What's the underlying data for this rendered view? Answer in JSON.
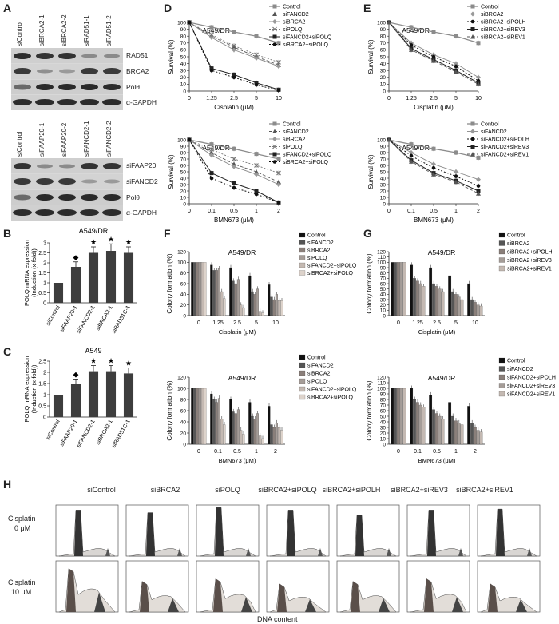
{
  "panels": {
    "A": {
      "letter": "A",
      "blot1": {
        "lanes": [
          "siControl",
          "siBRCA2-1",
          "siBRCA2-2",
          "siRAD51-1",
          "siRAD51-2"
        ],
        "bands": [
          "RAD51",
          "BRCA2",
          "Polθ",
          "α-GAPDH"
        ]
      },
      "blot2": {
        "lanes": [
          "siControl",
          "siFAAP20-1",
          "siFAAP20-2",
          "siFANCD2-1",
          "siFANCD2-2"
        ],
        "bands": [
          "siFAAP20",
          "siFANCD2",
          "Polθ",
          "α-GAPDH"
        ]
      }
    },
    "B": {
      "letter": "B",
      "title": "A549/DR",
      "ylabel": "POLQ mRNA expression (Induction (x-fold))"
    },
    "C": {
      "letter": "C",
      "title": "A549",
      "ylabel": "POLQ mRNA expression (Induction (x-fold))"
    },
    "D": {
      "letter": "D"
    },
    "E": {
      "letter": "E"
    },
    "F": {
      "letter": "F"
    },
    "G": {
      "letter": "G"
    },
    "H": {
      "letter": "H",
      "columns": [
        "siControl",
        "siBRCA2",
        "siPOLQ",
        "siBRCA2+siPOLQ",
        "siBRCA2+siPOLH",
        "siBRCA2+siREV3",
        "siBRCA2+siREV1"
      ],
      "rows": [
        [
          "Cisplatin",
          "0 μM"
        ],
        [
          "Cisplatin",
          "10 μM"
        ]
      ],
      "xlabel": "DNA content"
    }
  },
  "chart_data": [
    {
      "id": "B",
      "type": "bar",
      "title": "A549/DR",
      "ylabel": "POLQ mRNA expression (Induction (x-fold))",
      "categories": [
        "siControl",
        "siFAAP20-1",
        "siFANCD2-1",
        "siBRCA2-1",
        "siRAD51C-1"
      ],
      "values": [
        1.0,
        1.8,
        2.5,
        2.6,
        2.5
      ],
      "errors": [
        0.0,
        0.25,
        0.3,
        0.35,
        0.3
      ],
      "markers": [
        "",
        "◆",
        "★",
        "★",
        "★"
      ],
      "ylim": [
        0,
        3
      ],
      "yticks": [
        0,
        0.5,
        1,
        1.5,
        2,
        2.5,
        3
      ]
    },
    {
      "id": "C",
      "type": "bar",
      "title": "A549",
      "ylabel": "POLQ mRNA expression (Induction (x-fold))",
      "categories": [
        "siControl",
        "siFAAP20-1",
        "siFANCD2-1",
        "siBRCA2-1",
        "siRAD51C-1"
      ],
      "values": [
        1.0,
        1.5,
        2.05,
        2.05,
        1.95
      ],
      "errors": [
        0.0,
        0.2,
        0.25,
        0.25,
        0.25
      ],
      "markers": [
        "",
        "◆",
        "★",
        "★",
        "★"
      ],
      "ylim": [
        0,
        2.5
      ],
      "yticks": [
        0,
        0.5,
        1,
        1.5,
        2,
        2.5
      ]
    },
    {
      "id": "D1",
      "type": "line",
      "title": "A549/DR",
      "xlabel": "Cisplatin (μM)",
      "ylabel": "Survival (%)",
      "x": [
        "0",
        "1.25",
        "2.5",
        "5",
        "10"
      ],
      "ylim": [
        0,
        100
      ],
      "yticks": [
        0,
        10,
        20,
        30,
        40,
        50,
        60,
        70,
        80,
        90,
        100
      ],
      "series": [
        {
          "name": "Control",
          "values": [
            100,
            93,
            86,
            80,
            70
          ],
          "style": "ctrl"
        },
        {
          "name": "siFANCD2",
          "values": [
            100,
            80,
            64,
            50,
            38
          ],
          "style": "tri"
        },
        {
          "name": "siBRCA2",
          "values": [
            100,
            78,
            60,
            48,
            36
          ],
          "style": "diam"
        },
        {
          "name": "siPOLQ",
          "values": [
            100,
            82,
            66,
            53,
            42
          ],
          "style": "x"
        },
        {
          "name": "siFANCD2+siPOLQ",
          "values": [
            100,
            33,
            24,
            12,
            2
          ],
          "style": "sq"
        },
        {
          "name": "siBRCA2+siPOLQ",
          "values": [
            100,
            30,
            20,
            9,
            1
          ],
          "style": "dot"
        }
      ]
    },
    {
      "id": "D2",
      "type": "line",
      "title": "A549/DR",
      "xlabel": "BMN673 (μM)",
      "ylabel": "Survival (%)",
      "x": [
        "0",
        "0.1",
        "0.5",
        "1",
        "2"
      ],
      "ylim": [
        0,
        100
      ],
      "yticks": [
        0,
        10,
        20,
        30,
        40,
        50,
        60,
        70,
        80,
        90,
        100
      ],
      "series": [
        {
          "name": "Control",
          "values": [
            100,
            93,
            86,
            78,
            70
          ],
          "style": "ctrl"
        },
        {
          "name": "siFANCD2",
          "values": [
            100,
            80,
            62,
            50,
            34
          ],
          "style": "tri"
        },
        {
          "name": "siBRCA2",
          "values": [
            100,
            76,
            58,
            46,
            30
          ],
          "style": "diam"
        },
        {
          "name": "siPOLQ",
          "values": [
            100,
            85,
            70,
            60,
            48
          ],
          "style": "x"
        },
        {
          "name": "siFANCD2+siPOLQ",
          "values": [
            100,
            48,
            32,
            20,
            2
          ],
          "style": "sq"
        },
        {
          "name": "siBRCA2+siPOLQ",
          "values": [
            100,
            40,
            25,
            15,
            2
          ],
          "style": "dot"
        }
      ]
    },
    {
      "id": "E1",
      "type": "line",
      "title": "A549/DR",
      "xlabel": "Cisplatin (μM)",
      "ylabel": "Survival (%)",
      "x": [
        "0",
        "1.25",
        "2.5",
        "5",
        "10"
      ],
      "ylim": [
        0,
        100
      ],
      "yticks": [
        0,
        10,
        20,
        30,
        40,
        50,
        60,
        70,
        80,
        90,
        100
      ],
      "series": [
        {
          "name": "Control",
          "values": [
            100,
            93,
            86,
            80,
            70
          ],
          "style": "ctrl"
        },
        {
          "name": "siBRCA2",
          "values": [
            100,
            70,
            53,
            40,
            20
          ],
          "style": "diam"
        },
        {
          "name": "siBRCA2+siPOLH",
          "values": [
            100,
            67,
            50,
            36,
            15
          ],
          "style": "dot"
        },
        {
          "name": "siBRCA2+siREV3",
          "values": [
            100,
            62,
            46,
            30,
            12
          ],
          "style": "sq"
        },
        {
          "name": "siBRCA2+siREV1",
          "values": [
            100,
            60,
            44,
            28,
            10
          ],
          "style": "tri"
        }
      ]
    },
    {
      "id": "E2",
      "type": "line",
      "title": "A549/DR",
      "xlabel": "BMN673 (μM)",
      "ylabel": "Survival (%)",
      "x": [
        "0",
        "0.1",
        "0.5",
        "1",
        "2"
      ],
      "ylim": [
        0,
        100
      ],
      "yticks": [
        0,
        10,
        20,
        30,
        40,
        50,
        60,
        70,
        80,
        90,
        100
      ],
      "series": [
        {
          "name": "Control",
          "values": [
            100,
            93,
            86,
            80,
            72
          ],
          "style": "ctrl"
        },
        {
          "name": "siFANCD2",
          "values": [
            100,
            80,
            62,
            50,
            38
          ],
          "style": "diam"
        },
        {
          "name": "siFANCD2+siPOLH",
          "values": [
            100,
            75,
            56,
            43,
            28
          ],
          "style": "dot"
        },
        {
          "name": "siFANCD2+siREV3",
          "values": [
            100,
            68,
            48,
            36,
            20
          ],
          "style": "sq"
        },
        {
          "name": "siFANCD2+siREV1",
          "values": [
            100,
            66,
            46,
            34,
            16
          ],
          "style": "tri"
        }
      ]
    },
    {
      "id": "F1",
      "type": "bar",
      "title": "A549/DR",
      "xlabel": "Cisplatin (μM)",
      "ylabel": "Colony formation (%)",
      "categories": [
        "0",
        "1.25",
        "2.5",
        "5",
        "10"
      ],
      "ylim": [
        0,
        120
      ],
      "yticks": [
        0,
        20,
        40,
        60,
        80,
        100,
        120
      ],
      "series": [
        {
          "name": "Control",
          "values": [
            100,
            95,
            90,
            75,
            58
          ]
        },
        {
          "name": "siFANCD2",
          "values": [
            100,
            85,
            65,
            45,
            35
          ]
        },
        {
          "name": "siBRCA2",
          "values": [
            100,
            85,
            60,
            40,
            30
          ]
        },
        {
          "name": "siPOLQ",
          "values": [
            100,
            88,
            68,
            50,
            40
          ]
        },
        {
          "name": "siFANCD2+siPOLQ",
          "values": [
            100,
            45,
            20,
            8,
            28
          ]
        },
        {
          "name": "siBRCA2+siPOLQ",
          "values": [
            100,
            32,
            15,
            5,
            28
          ]
        }
      ]
    },
    {
      "id": "F2",
      "type": "bar",
      "title": "A549/DR",
      "xlabel": "BMN673 (μM)",
      "ylabel": "Colony formation (%)",
      "categories": [
        "0",
        "0.1",
        "0.5",
        "1",
        "2"
      ],
      "ylim": [
        0,
        120
      ],
      "yticks": [
        0,
        20,
        40,
        60,
        80,
        100,
        120
      ],
      "series": [
        {
          "name": "Control",
          "values": [
            100,
            90,
            80,
            75,
            68
          ]
        },
        {
          "name": "siFANCD2",
          "values": [
            100,
            80,
            58,
            50,
            35
          ]
        },
        {
          "name": "siBRCA2",
          "values": [
            100,
            75,
            55,
            45,
            30
          ]
        },
        {
          "name": "siPOLQ",
          "values": [
            100,
            82,
            62,
            55,
            38
          ]
        },
        {
          "name": "siFANCD2+siPOLQ",
          "values": [
            100,
            45,
            25,
            15,
            30
          ]
        },
        {
          "name": "siBRCA2+siPOLQ",
          "values": [
            100,
            35,
            18,
            10,
            25
          ]
        }
      ]
    },
    {
      "id": "G1",
      "type": "bar",
      "title": "A549/DR",
      "xlabel": "Cisplatin (μM)",
      "ylabel": "Colony formation (%)",
      "categories": [
        "0",
        "1.25",
        "2.5",
        "5",
        "10"
      ],
      "ylim": [
        0,
        120
      ],
      "yticks": [
        0,
        10,
        20,
        30,
        40,
        50,
        60,
        70,
        80,
        90,
        100,
        110,
        120
      ],
      "series": [
        {
          "name": "Control",
          "values": [
            100,
            95,
            90,
            75,
            60
          ]
        },
        {
          "name": "siBRCA2",
          "values": [
            100,
            70,
            60,
            45,
            30
          ]
        },
        {
          "name": "siBRCA2+siPOLH",
          "values": [
            100,
            65,
            55,
            40,
            25
          ]
        },
        {
          "name": "siBRCA2+siREV3",
          "values": [
            100,
            60,
            50,
            35,
            20
          ]
        },
        {
          "name": "siBRCA2+siREV1",
          "values": [
            100,
            55,
            45,
            30,
            18
          ]
        }
      ]
    },
    {
      "id": "G2",
      "type": "bar",
      "title": "A549/DR",
      "xlabel": "BMN673 (μM)",
      "ylabel": "Colony formation (%)",
      "categories": [
        "0",
        "0.1",
        "0.5",
        "1",
        "2"
      ],
      "ylim": [
        0,
        120
      ],
      "yticks": [
        0,
        10,
        20,
        30,
        40,
        50,
        60,
        70,
        80,
        90,
        100,
        110,
        120
      ],
      "series": [
        {
          "name": "Control",
          "values": [
            100,
            100,
            88,
            75,
            68
          ]
        },
        {
          "name": "siFANCD2",
          "values": [
            100,
            80,
            62,
            50,
            38
          ]
        },
        {
          "name": "siFANCD2+siPOLH",
          "values": [
            100,
            75,
            55,
            42,
            30
          ]
        },
        {
          "name": "siFANCD2+siREV3",
          "values": [
            100,
            70,
            50,
            38,
            25
          ]
        },
        {
          "name": "siFANCD2+siREV1",
          "values": [
            100,
            66,
            45,
            35,
            22
          ]
        }
      ]
    }
  ]
}
